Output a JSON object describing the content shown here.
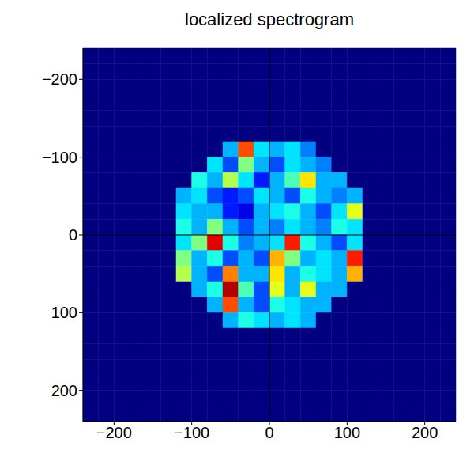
{
  "chart_data": {
    "type": "heatmap",
    "title": "localized spectrogram",
    "xlim": [
      -240,
      240
    ],
    "ylim": [
      -240,
      240
    ],
    "xticks": [
      {
        "value": -200,
        "label": "−200"
      },
      {
        "value": -100,
        "label": "−100"
      },
      0,
      100,
      200
    ],
    "yticks": [
      {
        "value": -200,
        "label": "−200"
      },
      {
        "value": -100,
        "label": "−100"
      },
      0,
      100,
      200
    ],
    "y_reversed": true,
    "ref_lines": {
      "x": 0,
      "y": 0
    },
    "zlim": [
      0,
      1
    ],
    "x": [
      -230,
      -210,
      -190,
      -170,
      -150,
      -130,
      -110,
      -90,
      -70,
      -50,
      -30,
      -10,
      10,
      30,
      50,
      70,
      90,
      110,
      130,
      150,
      170,
      190,
      210,
      230
    ],
    "y": [
      -230,
      -210,
      -190,
      -170,
      -150,
      -130,
      -110,
      -90,
      -70,
      -50,
      -30,
      -10,
      10,
      30,
      50,
      70,
      90,
      110,
      130,
      150,
      170,
      190,
      210,
      230
    ],
    "z": [
      [
        0,
        0,
        0,
        0,
        0,
        0,
        0,
        0,
        0,
        0,
        0,
        0,
        0,
        0,
        0,
        0,
        0,
        0,
        0,
        0,
        0,
        0,
        0,
        0
      ],
      [
        0,
        0,
        0,
        0,
        0,
        0,
        0,
        0,
        0,
        0,
        0,
        0,
        0,
        0,
        0,
        0,
        0,
        0,
        0,
        0,
        0,
        0,
        0,
        0
      ],
      [
        0,
        0,
        0,
        0,
        0,
        0,
        0,
        0,
        0,
        0,
        0,
        0,
        0,
        0,
        0,
        0,
        0,
        0,
        0,
        0,
        0,
        0,
        0,
        0
      ],
      [
        0,
        0,
        0,
        0,
        0,
        0,
        0,
        0,
        0,
        0,
        0,
        0,
        0,
        0,
        0,
        0,
        0,
        0,
        0,
        0,
        0,
        0,
        0,
        0
      ],
      [
        0,
        0,
        0,
        0,
        0,
        0,
        0,
        0,
        0,
        0,
        0,
        0,
        0,
        0,
        0,
        0,
        0,
        0,
        0,
        0,
        0,
        0,
        0,
        0
      ],
      [
        0,
        0,
        0,
        0,
        0,
        0,
        0,
        0,
        0,
        0,
        0,
        0,
        0,
        0,
        0,
        0,
        0,
        0,
        0,
        0,
        0,
        0,
        0,
        0
      ],
      [
        0,
        0,
        0,
        0,
        0,
        0,
        0,
        0,
        0,
        0.3,
        0.8,
        0.35,
        0.3,
        0.35,
        0.25,
        0,
        0,
        0,
        0,
        0,
        0,
        0,
        0,
        0
      ],
      [
        0,
        0,
        0,
        0,
        0,
        0,
        0,
        0,
        0.35,
        0.2,
        0.5,
        0.3,
        0.2,
        0.35,
        0.3,
        0.25,
        0,
        0,
        0,
        0,
        0,
        0,
        0,
        0
      ],
      [
        0,
        0,
        0,
        0,
        0,
        0,
        0,
        0.4,
        0.3,
        0.55,
        0.35,
        0.15,
        0.3,
        0.45,
        0.65,
        0.3,
        0.3,
        0,
        0,
        0,
        0,
        0,
        0,
        0
      ],
      [
        0,
        0,
        0,
        0,
        0,
        0,
        0.3,
        0.35,
        0.2,
        0.15,
        0.2,
        0.35,
        0.3,
        0.2,
        0.4,
        0.3,
        0.25,
        0.3,
        0,
        0,
        0,
        0,
        0,
        0
      ],
      [
        0,
        0,
        0,
        0,
        0,
        0,
        0.35,
        0.3,
        0.3,
        0.15,
        0.1,
        0.3,
        0.35,
        0.4,
        0.3,
        0.2,
        0.35,
        0.6,
        0,
        0,
        0,
        0,
        0,
        0
      ],
      [
        0,
        0,
        0,
        0,
        0,
        0,
        0.4,
        0.3,
        0.5,
        0.3,
        0.2,
        0.3,
        0.25,
        0.35,
        0.3,
        0.25,
        0.4,
        0.35,
        0,
        0,
        0,
        0,
        0,
        0
      ],
      [
        0,
        0,
        0,
        0,
        0,
        0,
        0.35,
        0.5,
        0.9,
        0.4,
        0.25,
        0.3,
        0.35,
        0.85,
        0.4,
        0.3,
        0.2,
        0.35,
        0,
        0,
        0,
        0,
        0,
        0
      ],
      [
        0,
        0,
        0,
        0,
        0,
        0,
        0.5,
        0.3,
        0.4,
        0.2,
        0.3,
        0.2,
        0.7,
        0.5,
        0.3,
        0.35,
        0.3,
        0.85,
        0,
        0,
        0,
        0,
        0,
        0
      ],
      [
        0,
        0,
        0,
        0,
        0,
        0,
        0.55,
        0.3,
        0.2,
        0.75,
        0.3,
        0.3,
        0.65,
        0.3,
        0.4,
        0.35,
        0.3,
        0.7,
        0,
        0,
        0,
        0,
        0,
        0
      ],
      [
        0,
        0,
        0,
        0,
        0,
        0,
        0,
        0.3,
        0.4,
        0.95,
        0.45,
        0.2,
        0.6,
        0.3,
        0.6,
        0.3,
        0.3,
        0,
        0,
        0,
        0,
        0,
        0,
        0
      ],
      [
        0,
        0,
        0,
        0,
        0,
        0,
        0,
        0,
        0.3,
        0.8,
        0.3,
        0.2,
        0.4,
        0.35,
        0.3,
        0.3,
        0,
        0,
        0,
        0,
        0,
        0,
        0,
        0
      ],
      [
        0,
        0,
        0,
        0,
        0,
        0,
        0,
        0,
        0,
        0.3,
        0.4,
        0.35,
        0.3,
        0.35,
        0.3,
        0,
        0,
        0,
        0,
        0,
        0,
        0,
        0,
        0
      ],
      [
        0,
        0,
        0,
        0,
        0,
        0,
        0,
        0,
        0,
        0,
        0,
        0,
        0,
        0,
        0,
        0,
        0,
        0,
        0,
        0,
        0,
        0,
        0,
        0
      ],
      [
        0,
        0,
        0,
        0,
        0,
        0,
        0,
        0,
        0,
        0,
        0,
        0,
        0,
        0,
        0,
        0,
        0,
        0,
        0,
        0,
        0,
        0,
        0,
        0
      ],
      [
        0,
        0,
        0,
        0,
        0,
        0,
        0,
        0,
        0,
        0,
        0,
        0,
        0,
        0,
        0,
        0,
        0,
        0,
        0,
        0,
        0,
        0,
        0,
        0
      ],
      [
        0,
        0,
        0,
        0,
        0,
        0,
        0,
        0,
        0,
        0,
        0,
        0,
        0,
        0,
        0,
        0,
        0,
        0,
        0,
        0,
        0,
        0,
        0,
        0
      ],
      [
        0,
        0,
        0,
        0,
        0,
        0,
        0,
        0,
        0,
        0,
        0,
        0,
        0,
        0,
        0,
        0,
        0,
        0,
        0,
        0,
        0,
        0,
        0,
        0
      ],
      [
        0,
        0,
        0,
        0,
        0,
        0,
        0,
        0,
        0,
        0,
        0,
        0,
        0,
        0,
        0,
        0,
        0,
        0,
        0,
        0,
        0,
        0,
        0,
        0
      ]
    ]
  }
}
